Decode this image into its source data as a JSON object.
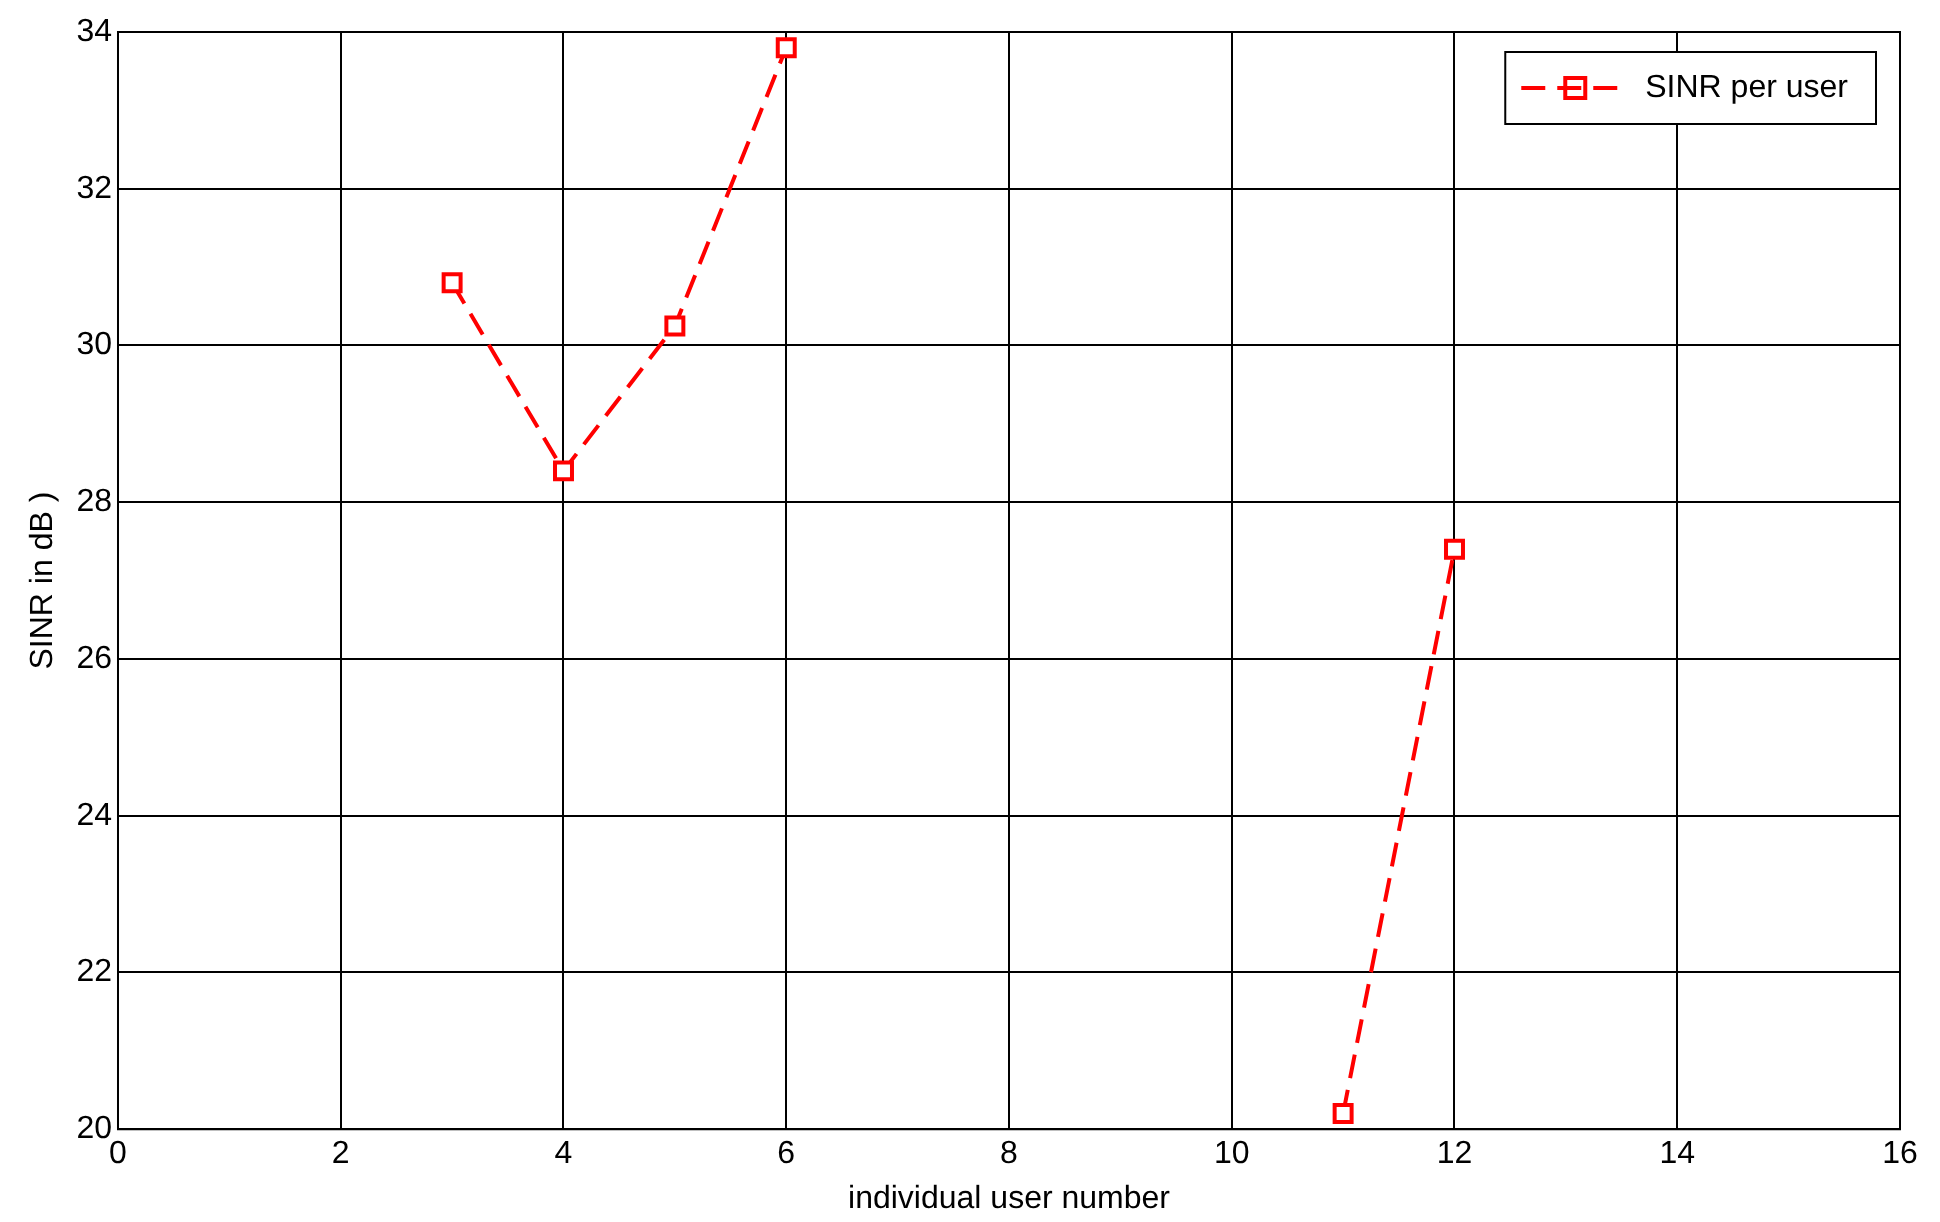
{
  "chart_data": {
    "type": "line",
    "xlabel": "individual user number",
    "ylabel": "SINR in dB )",
    "x": [
      3,
      4,
      5,
      6,
      7,
      8,
      9,
      10,
      11,
      12
    ],
    "series": [
      {
        "name": "SINR per user",
        "color": "#ff0000",
        "values": [
          30.8,
          28.4,
          30.25,
          33.8,
          null,
          null,
          null,
          null,
          20.2,
          27.4
        ]
      }
    ],
    "xlim": [
      0,
      16
    ],
    "xticks": [
      0,
      2,
      4,
      6,
      8,
      10,
      12,
      14,
      16
    ],
    "ylim": [
      20,
      34
    ],
    "yticks": [
      20,
      22,
      24,
      26,
      28,
      30,
      32,
      34
    ],
    "grid": true,
    "legend": "top right",
    "marker": "square",
    "line_style": "dashed"
  }
}
